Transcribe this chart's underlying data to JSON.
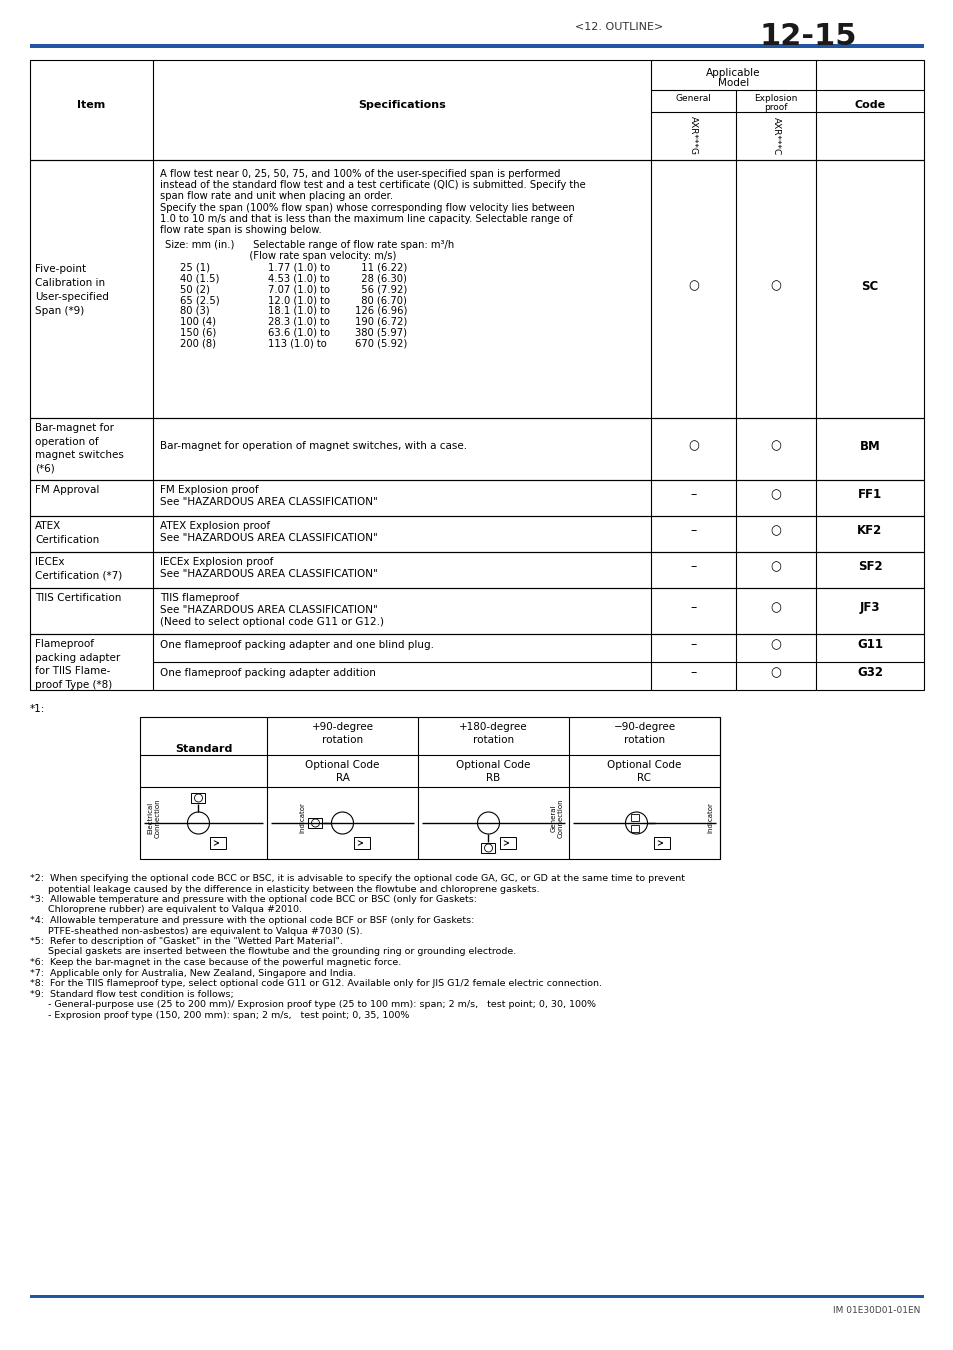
{
  "page_header": "<12. OUTLINE>",
  "page_number": "12-15",
  "footer": "IM 01E30D01-01EN",
  "header_line_color": "#2255a4",
  "footnotes": [
    "*2:  When specifying the optional code BCC or BSC, it is advisable to specify the optional code GA, GC, or GD at the same time to prevent",
    "      potential leakage caused by the difference in elasticity between the flowtube and chloroprene gaskets.",
    "*3:  Allowable temperature and pressure with the optional code BCC or BSC (only for Gaskets:",
    "      Chloroprene rubber) are equivalent to Valqua #2010.",
    "*4:  Allowable temperature and pressure with the optional code BCF or BSF (only for Gaskets:",
    "      PTFE-sheathed non-asbestos) are equivalent to Valqua #7030 (S).",
    "*5:  Refer to description of \"Gasket\" in the \"Wetted Part Material\".",
    "      Special gaskets are inserted between the flowtube and the grounding ring or grounding electrode.",
    "*6:  Keep the bar-magnet in the case because of the powerful magnetic force.",
    "*7:  Applicable only for Australia, New Zealand, Singapore and India.",
    "*8:  For the TIIS flameproof type, select optional code G11 or G12. Available only for JIS G1/2 female electric connection.",
    "*9:  Standard flow test condition is follows;",
    "      - General-purpose use (25 to 200 mm)/ Exprosion proof type (25 to 100 mm): span; 2 m/s,   test point; 0, 30, 100%",
    "      - Exprosion proof type (150, 200 mm): span; 2 m/s,   test point; 0, 35, 100%"
  ]
}
